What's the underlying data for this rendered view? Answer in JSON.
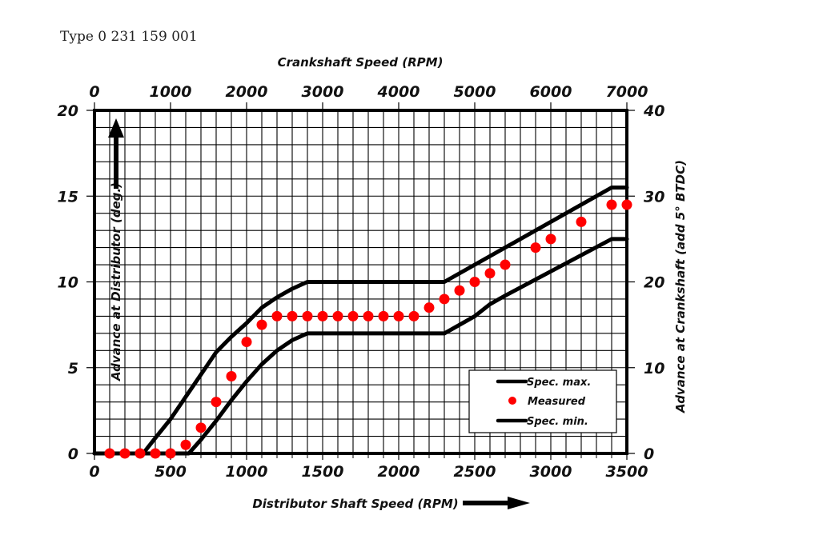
{
  "header": {
    "type_label": "Type 0 231 159 001"
  },
  "chart_data": {
    "type": "line",
    "title": "Type 0 231 159 001",
    "xlabel": "Distributor Shaft Speed (RPM)",
    "ylabel": "Advance at Distributor (deg.)",
    "x2label": "Crankshaft Speed (RPM)",
    "y2label": "Advance at Crankshaft (add 5° BTDC)",
    "xlim": [
      0,
      3500
    ],
    "ylim": [
      0,
      20
    ],
    "x2lim": [
      0,
      7000
    ],
    "y2lim": [
      0,
      40
    ],
    "x_ticks": [
      "0",
      "500",
      "1000",
      "1500",
      "2000",
      "2500",
      "3000",
      "3500"
    ],
    "x_tick_values": [
      0,
      500,
      1000,
      1500,
      2000,
      2500,
      3000,
      3500
    ],
    "y_ticks": [
      "0",
      "5",
      "10",
      "15",
      "20"
    ],
    "y_tick_values": [
      0,
      5,
      10,
      15,
      20
    ],
    "x2_ticks": [
      "0",
      "1000",
      "2000",
      "3000",
      "4000",
      "5000",
      "6000",
      "7000"
    ],
    "x2_tick_values": [
      0,
      1000,
      2000,
      3000,
      4000,
      5000,
      6000,
      7000
    ],
    "y2_ticks": [
      "0",
      "10",
      "20",
      "30",
      "40"
    ],
    "y2_tick_values": [
      0,
      10,
      20,
      30,
      40
    ],
    "grid": true,
    "grid_minor_x_step": 100,
    "grid_minor_y_step": 1,
    "legend_position": "bottom-right",
    "legend": [
      "Spec. max.",
      "Measured",
      "Spec. min."
    ],
    "series": [
      {
        "name": "Spec. max.",
        "kind": "line",
        "color": "#000000",
        "x": [
          0,
          320,
          400,
          500,
          600,
          700,
          800,
          900,
          1000,
          1100,
          1200,
          1300,
          1400,
          2300,
          3400,
          3500
        ],
        "y": [
          0,
          0,
          0.9,
          2.0,
          3.3,
          4.6,
          5.9,
          6.8,
          7.6,
          8.5,
          9.1,
          9.6,
          10.0,
          10.0,
          15.5,
          15.5
        ]
      },
      {
        "name": "Measured",
        "kind": "scatter",
        "color": "#ff0000",
        "x": [
          100,
          200,
          300,
          400,
          500,
          600,
          700,
          800,
          900,
          1000,
          1100,
          1200,
          1300,
          1400,
          1500,
          1600,
          1700,
          1800,
          1900,
          2000,
          2100,
          2200,
          2300,
          2400,
          2500,
          2600,
          2700,
          2900,
          3000,
          3200,
          3400,
          3500
        ],
        "y": [
          0,
          0,
          0,
          0,
          0,
          0.5,
          1.5,
          3.0,
          4.5,
          6.5,
          7.5,
          8.0,
          8.0,
          8.0,
          8.0,
          8.0,
          8.0,
          8.0,
          8.0,
          8.0,
          8.0,
          8.5,
          9.0,
          9.5,
          10.0,
          10.5,
          11.0,
          12.0,
          12.5,
          13.5,
          14.5,
          14.5
        ]
      },
      {
        "name": "Spec. min.",
        "kind": "line",
        "color": "#000000",
        "x": [
          0,
          620,
          700,
          800,
          900,
          1000,
          1100,
          1200,
          1300,
          1400,
          2300,
          2500,
          2600,
          2700,
          3400,
          3500
        ],
        "y": [
          0,
          0,
          0.8,
          1.9,
          3.1,
          4.2,
          5.2,
          6.0,
          6.6,
          7.0,
          7.0,
          8.0,
          8.7,
          9.2,
          12.5,
          12.5
        ]
      }
    ]
  }
}
